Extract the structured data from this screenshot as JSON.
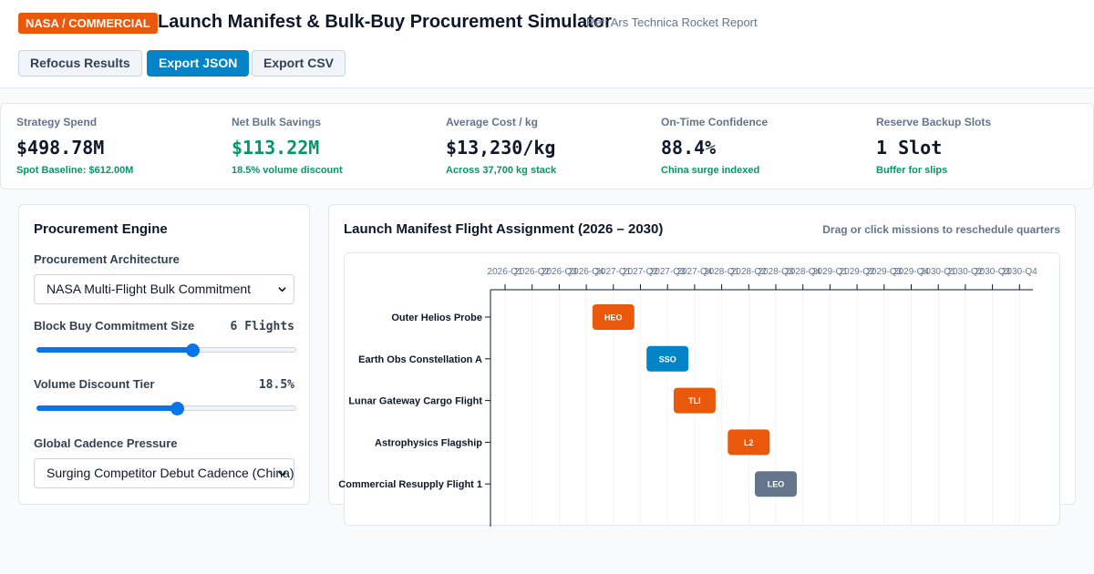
{
  "header": {
    "badge": "NASA / COMMERCIAL",
    "title": "Launch Manifest & Bulk-Buy Procurement Simulator",
    "ref": "Ref: Ars Technica Rocket Report",
    "buttons": {
      "refocus": "Refocus Results",
      "export_json": "Export JSON",
      "export_csv": "Export CSV"
    }
  },
  "stats": [
    {
      "label": "Strategy Spend",
      "value": "$498.78M",
      "sub": "Spot Baseline: $612.00M"
    },
    {
      "label": "Net Bulk Savings",
      "value": "$113.22M",
      "sub": "18.5% volume discount"
    },
    {
      "label": "Average Cost / kg",
      "value": "$13,230/kg",
      "sub": "Across 37,700 kg stack"
    },
    {
      "label": "On-Time Confidence",
      "value": "88.4%",
      "sub": "China surge indexed"
    },
    {
      "label": "Reserve Backup Slots",
      "value": "1 Slot",
      "sub": "Buffer for slips"
    }
  ],
  "engine": {
    "title": "Procurement Engine",
    "architecture_label": "Procurement Architecture",
    "architecture_value": "NASA Multi-Flight Bulk Commitment",
    "block_label": "Block Buy Commitment Size",
    "block_value": "6 Flights",
    "block_fraction": 0.6,
    "discount_label": "Volume Discount Tier",
    "discount_value": "18.5%",
    "discount_fraction": 0.54,
    "cadence_label": "Global Cadence Pressure",
    "cadence_value": "Surging Competitor Debut Cadence (China)"
  },
  "manifest": {
    "title": "Launch Manifest Flight Assignment (2026 – 2030)",
    "hint": "Drag or click missions to reschedule quarters",
    "quarters": [
      "2026-Q1",
      "2026-Q2",
      "2026-Q3",
      "2026-Q4",
      "2027-Q1",
      "2027-Q2",
      "2027-Q3",
      "2027-Q4",
      "2028-Q1",
      "2028-Q2",
      "2028-Q3",
      "2028-Q4",
      "2029-Q1",
      "2029-Q2",
      "2029-Q3",
      "2029-Q4",
      "2030-Q1",
      "2030-Q2",
      "2030-Q3",
      "2030-Q4"
    ],
    "missions": [
      {
        "name": "Outer Helios Probe",
        "orbit": "HEO",
        "quarter": "2027-Q1",
        "color": "#ea580c"
      },
      {
        "name": "Earth Obs Constellation A",
        "orbit": "SSO",
        "quarter": "2027-Q3",
        "color": "#0284c7"
      },
      {
        "name": "Lunar Gateway Cargo Flight",
        "orbit": "TLI",
        "quarter": "2027-Q4",
        "color": "#ea580c"
      },
      {
        "name": "Astrophysics Flagship",
        "orbit": "L2",
        "quarter": "2028-Q2",
        "color": "#ea580c"
      },
      {
        "name": "Commercial Resupply Flight 1",
        "orbit": "LEO",
        "quarter": "2028-Q3",
        "color": "#64748b"
      }
    ]
  }
}
